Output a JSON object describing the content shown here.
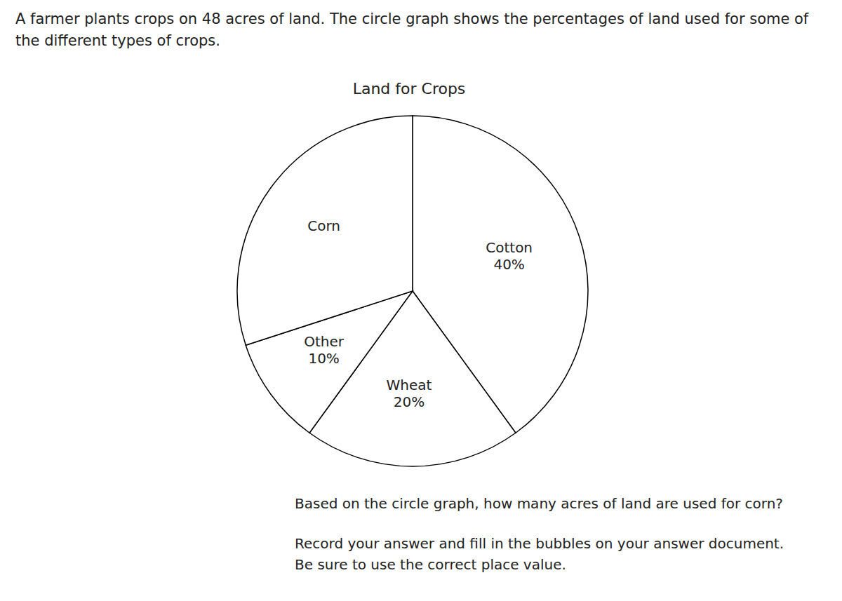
{
  "question": {
    "intro": "A farmer plants crops on 48 acres of land. The circle graph shows the percentages of land used for some of the different types of crops.",
    "prompt": "Based on the circle graph, how many acres of land are used for corn?",
    "instruction": "Record your answer and fill in the bubbles on your answer document. Be sure to use the correct place value."
  },
  "chart_data": {
    "type": "pie",
    "title": "Land for Crops",
    "categories": [
      "Cotton",
      "Wheat",
      "Other",
      "Corn"
    ],
    "values": [
      40,
      20,
      10,
      30
    ],
    "value_labels": [
      "40%",
      "20%",
      "10%",
      null
    ],
    "data_labels": true,
    "color": "#ffffff"
  }
}
